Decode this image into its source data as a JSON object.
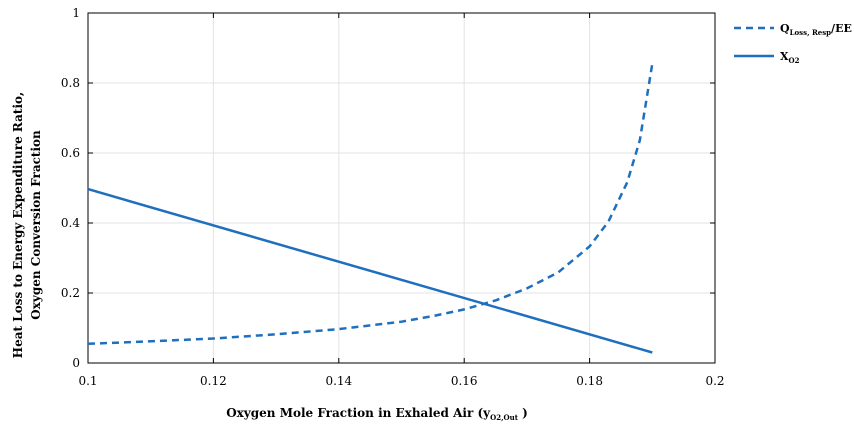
{
  "chart_data": {
    "type": "line",
    "xlabel_main": "Oxygen Mole Fraction in Exhaled Air (y",
    "xlabel_sub": "O2,Out",
    "xlabel_close": " )",
    "ylabel_line1": "Heat Loss to Energy Expenditure Ratio,",
    "ylabel_line2": "Oxygen Conversion Fraction",
    "xlim": [
      0.1,
      0.2
    ],
    "ylim": [
      0,
      1
    ],
    "xticks": [
      0.1,
      0.12,
      0.14,
      0.16,
      0.18,
      0.2
    ],
    "xtick_labels": [
      "0.1",
      "0.12",
      "0.14",
      "0.16",
      "0.18",
      "0.2"
    ],
    "yticks": [
      0,
      0.2,
      0.4,
      0.6,
      0.8,
      1
    ],
    "ytick_labels": [
      "0",
      "0.2",
      "0.4",
      "0.6",
      "0.8",
      "1"
    ],
    "grid": true,
    "legend_position": "outside-top-right",
    "series": [
      {
        "key": "q_loss",
        "legend_main": "Q",
        "legend_sub": "Loss, Resp",
        "legend_tail": "/EE",
        "style": "dashed",
        "color": "#1f6fbf",
        "x": [
          0.1,
          0.11,
          0.12,
          0.13,
          0.14,
          0.15,
          0.155,
          0.16,
          0.165,
          0.17,
          0.175,
          0.18,
          0.183,
          0.186,
          0.188,
          0.19
        ],
        "y": [
          0.055,
          0.062,
          0.07,
          0.082,
          0.097,
          0.118,
          0.134,
          0.153,
          0.179,
          0.213,
          0.259,
          0.333,
          0.404,
          0.516,
          0.636,
          0.855
        ]
      },
      {
        "key": "x_o2",
        "legend_main": "X",
        "legend_sub": "O2",
        "legend_tail": "",
        "style": "solid",
        "color": "#1f6fbf",
        "x": [
          0.1,
          0.19
        ],
        "y": [
          0.497,
          0.03
        ]
      }
    ]
  }
}
